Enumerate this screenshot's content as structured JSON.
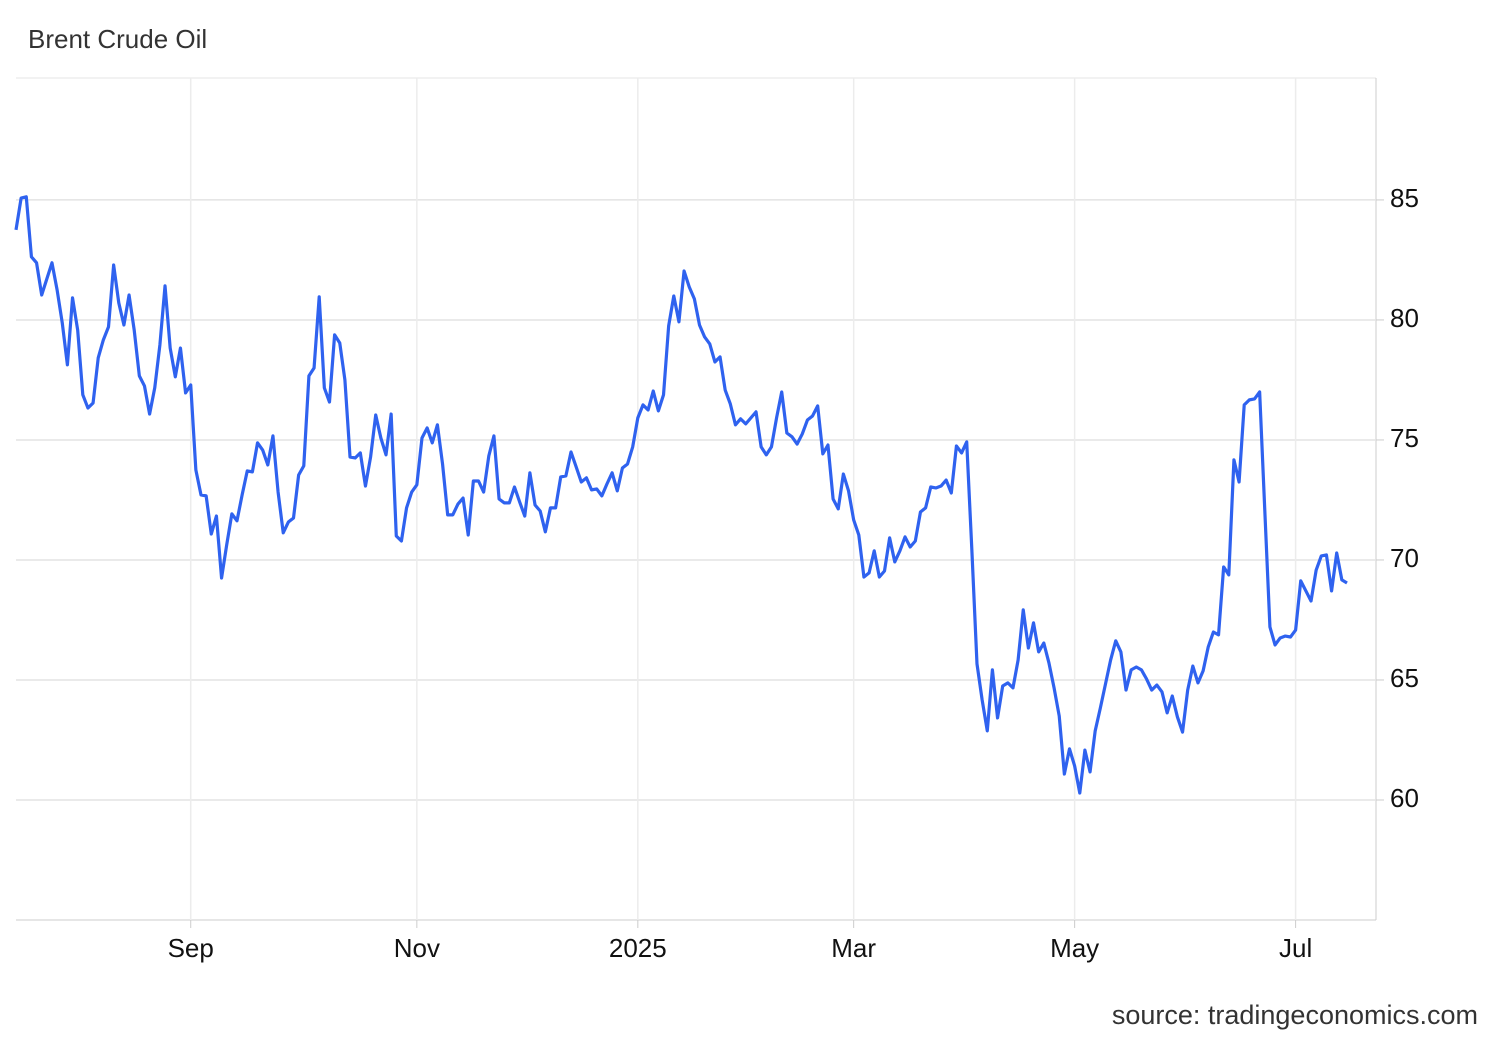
{
  "chart_data": {
    "type": "line",
    "title": "Brent Crude Oil",
    "source": "source: tradingeconomics.com",
    "categories": [
      null,
      null,
      null,
      null,
      null,
      null,
      null,
      null,
      null,
      null,
      null,
      null,
      null,
      null,
      null,
      null,
      null,
      null,
      null,
      null,
      null,
      null,
      null,
      null,
      null,
      null,
      null,
      null,
      null,
      null,
      null,
      null,
      null,
      null,
      "Sep",
      null,
      null,
      null,
      null,
      null,
      null,
      null,
      null,
      null,
      null,
      null,
      null,
      null,
      null,
      null,
      null,
      null,
      null,
      null,
      null,
      null,
      null,
      null,
      null,
      null,
      null,
      null,
      null,
      null,
      null,
      null,
      null,
      null,
      null,
      null,
      null,
      null,
      null,
      null,
      null,
      null,
      null,
      null,
      "Nov",
      null,
      null,
      null,
      null,
      null,
      null,
      null,
      null,
      null,
      null,
      null,
      null,
      null,
      null,
      null,
      null,
      null,
      null,
      null,
      null,
      null,
      null,
      null,
      null,
      null,
      null,
      null,
      null,
      null,
      null,
      null,
      null,
      null,
      null,
      null,
      null,
      null,
      null,
      null,
      null,
      null,
      null,
      "2025",
      null,
      null,
      null,
      null,
      null,
      null,
      null,
      null,
      null,
      null,
      null,
      null,
      null,
      null,
      null,
      null,
      null,
      null,
      null,
      null,
      null,
      null,
      null,
      null,
      null,
      null,
      null,
      null,
      null,
      null,
      null,
      null,
      null,
      null,
      null,
      null,
      null,
      null,
      null,
      null,
      null,
      "Mar",
      null,
      null,
      null,
      null,
      null,
      null,
      null,
      null,
      null,
      null,
      null,
      null,
      null,
      null,
      null,
      null,
      null,
      null,
      null,
      null,
      null,
      null,
      null,
      null,
      null,
      null,
      null,
      null,
      null,
      null,
      null,
      null,
      null,
      null,
      null,
      null,
      null,
      null,
      null,
      null,
      null,
      null,
      "May",
      null,
      null,
      null,
      null,
      null,
      null,
      null,
      null,
      null,
      null,
      null,
      null,
      null,
      null,
      null,
      null,
      null,
      null,
      null,
      null,
      null,
      null,
      null,
      null,
      null,
      null,
      null,
      null,
      null,
      null,
      null,
      null,
      null,
      null,
      null,
      null,
      null,
      null,
      null,
      null,
      null,
      null,
      "Jul",
      null,
      null,
      null,
      null,
      null,
      null,
      null,
      null,
      null,
      null
    ],
    "values": [
      83.75,
      85.08,
      85.13,
      82.63,
      82.38,
      81.04,
      81.71,
      82.38,
      81.25,
      79.88,
      78.13,
      80.92,
      79.58,
      76.88,
      76.33,
      76.54,
      78.42,
      79.17,
      79.71,
      82.29,
      80.71,
      79.79,
      81.04,
      79.58,
      77.67,
      77.25,
      76.08,
      77.17,
      78.96,
      81.42,
      78.83,
      77.63,
      78.83,
      76.96,
      77.29,
      73.75,
      72.71,
      72.67,
      71.08,
      71.83,
      69.25,
      70.63,
      71.92,
      71.63,
      72.71,
      73.71,
      73.67,
      74.88,
      74.58,
      73.96,
      75.17,
      72.83,
      71.13,
      71.58,
      71.75,
      73.54,
      73.92,
      77.67,
      78.0,
      80.96,
      77.17,
      76.58,
      79.38,
      79.04,
      77.5,
      74.29,
      74.25,
      74.46,
      73.08,
      74.29,
      76.04,
      75.08,
      74.38,
      76.08,
      71.0,
      70.79,
      72.17,
      72.83,
      73.13,
      75.08,
      75.5,
      74.88,
      75.63,
      74.0,
      71.88,
      71.88,
      72.33,
      72.58,
      71.04,
      73.29,
      73.29,
      72.83,
      74.33,
      75.17,
      72.54,
      72.38,
      72.38,
      73.04,
      72.42,
      71.83,
      73.63,
      72.29,
      72.04,
      71.17,
      72.17,
      72.17,
      73.46,
      73.5,
      74.5,
      73.88,
      73.25,
      73.42,
      72.92,
      72.96,
      72.67,
      73.17,
      73.63,
      72.88,
      73.83,
      74.0,
      74.71,
      75.92,
      76.46,
      76.25,
      77.04,
      76.21,
      76.88,
      79.75,
      81.0,
      79.92,
      82.04,
      81.38,
      80.88,
      79.79,
      79.29,
      79.0,
      78.25,
      78.46,
      77.08,
      76.5,
      75.63,
      75.88,
      75.67,
      75.92,
      76.17,
      74.71,
      74.38,
      74.71,
      75.92,
      77.0,
      75.29,
      75.13,
      74.83,
      75.25,
      75.83,
      76.0,
      76.42,
      74.42,
      74.79,
      72.54,
      72.13,
      73.58,
      72.88,
      71.67,
      71.04,
      69.29,
      69.46,
      70.38,
      69.29,
      69.54,
      70.92,
      69.92,
      70.38,
      70.96,
      70.54,
      70.79,
      72.0,
      72.17,
      73.04,
      73.0,
      73.08,
      73.33,
      72.79,
      74.75,
      74.46,
      74.92,
      70.42,
      65.67,
      64.17,
      62.88,
      65.42,
      63.42,
      64.75,
      64.88,
      64.67,
      65.83,
      67.92,
      66.33,
      67.38,
      66.17,
      66.54,
      65.71,
      64.67,
      63.5,
      61.08,
      62.13,
      61.42,
      60.29,
      62.08,
      61.17,
      62.88,
      63.83,
      64.83,
      65.83,
      66.63,
      66.17,
      64.58,
      65.42,
      65.54,
      65.42,
      65.04,
      64.58,
      64.79,
      64.5,
      63.63,
      64.33,
      63.46,
      62.83,
      64.58,
      65.58,
      64.88,
      65.38,
      66.38,
      67.0,
      66.88,
      69.71,
      69.38,
      74.17,
      73.25,
      76.46,
      76.67,
      76.71,
      77.0,
      72.08,
      67.21,
      66.46,
      66.75,
      66.83,
      66.79,
      67.08,
      69.13,
      68.71,
      68.29,
      69.58,
      70.17,
      70.21,
      68.71,
      70.29,
      69.17,
      69.04
    ],
    "color": "#2f62ef",
    "ylim": [
      55,
      90.08
    ],
    "yticks": [
      60,
      65,
      70,
      75,
      80,
      85
    ],
    "grid": true
  }
}
